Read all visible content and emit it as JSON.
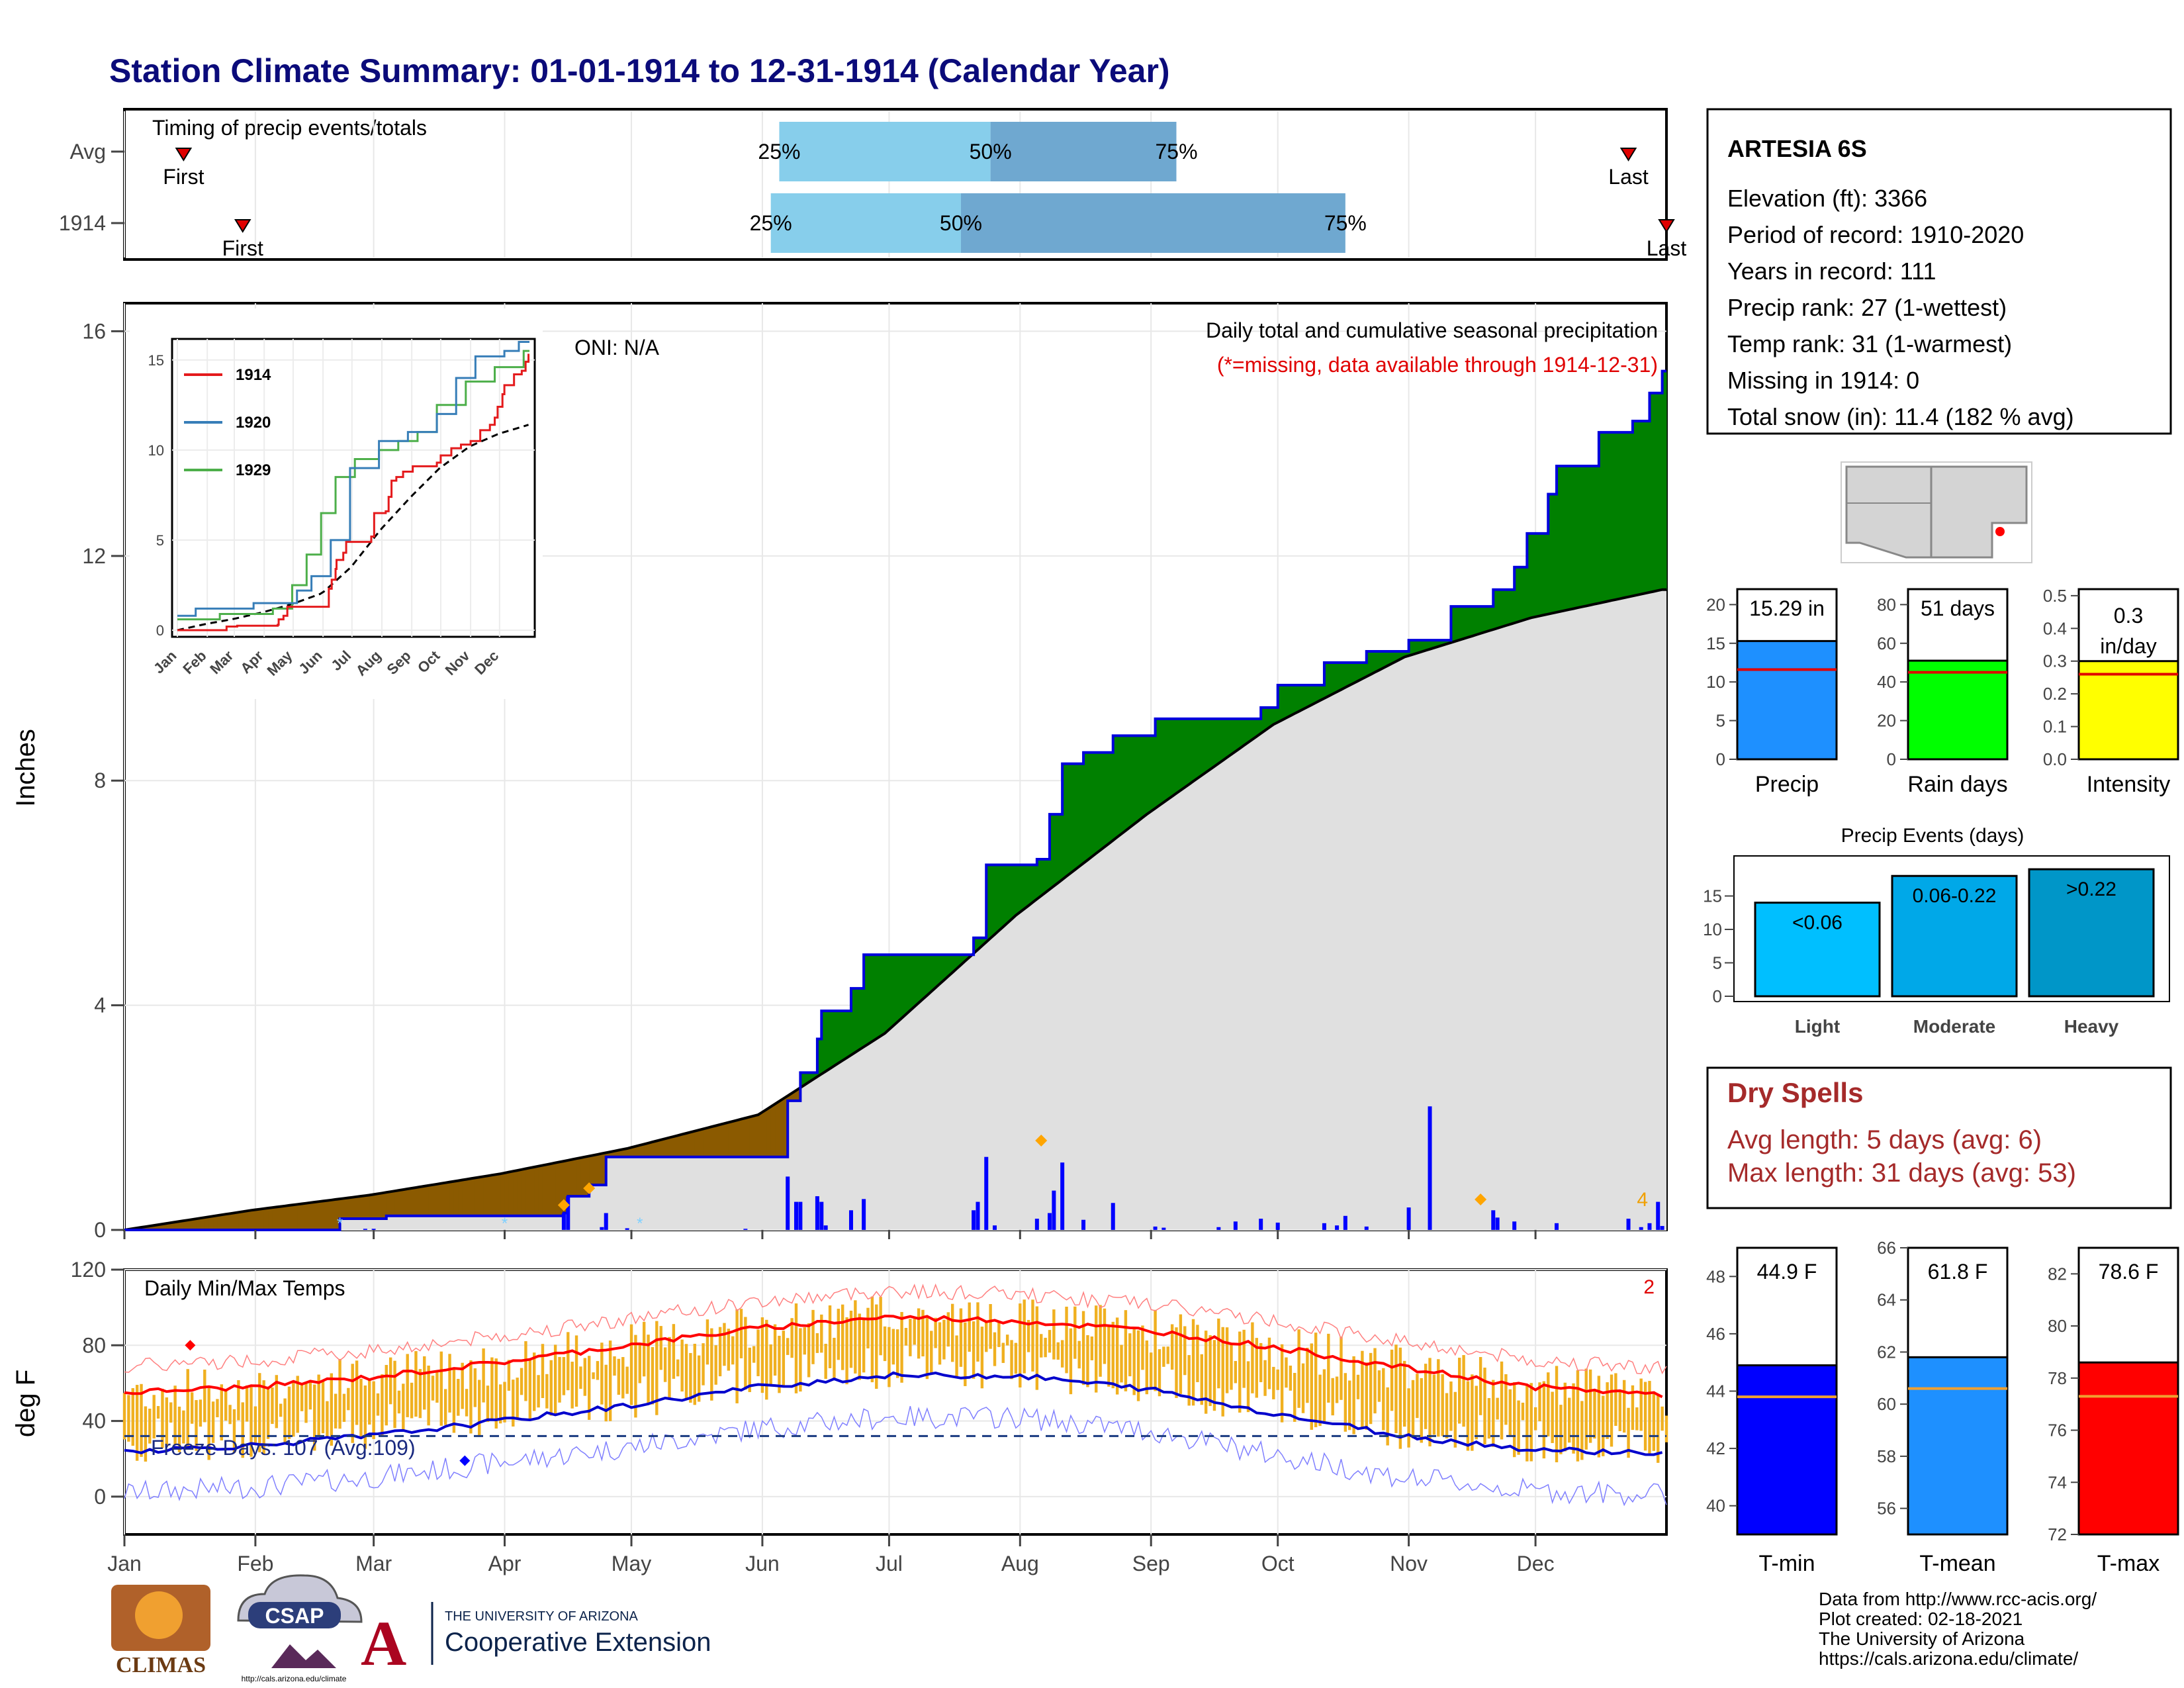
{
  "title": "Station Climate Summary: 01-01-1914 to 12-31-1914 (Calendar Year)",
  "colors": {
    "title": "#0b0b7a",
    "cum_area": "#008000",
    "avg_area_below": "#e0e0e0",
    "deficit_area": "#8b5a00",
    "daily_bar": "#0000ff",
    "temp_band": "#f0b020",
    "tmax_line": "#ff0000",
    "tmin_line": "#0000cc",
    "dry_spells": "#a52a2a"
  },
  "timing": {
    "label": "Timing of precip events/totals",
    "rows": [
      {
        "label": "Avg",
        "first_label": "First",
        "last_label": "Last",
        "first_doy": 15,
        "last_doy": 357,
        "q25_doy": 156,
        "q50_doy": 206,
        "q75_doy": 250,
        "q25_label": "25%",
        "q50_label": "50%",
        "q75_label": "75%"
      },
      {
        "label": "1914",
        "first_label": "First",
        "last_label": "Last",
        "first_doy": 29,
        "last_doy": 366,
        "q25_doy": 154,
        "q50_doy": 199,
        "q75_doy": 290,
        "q25_label": "25%",
        "q50_label": "50%",
        "q75_label": "75%"
      }
    ]
  },
  "precip_panel": {
    "ylabel": "Inches",
    "yticks": [
      "0",
      "4",
      "8",
      "12",
      "16"
    ],
    "oni_label": "ONI: N/A",
    "subtitle": "Daily total and cumulative seasonal precipitation",
    "missing_note": "(*=missing, data available through 1914-12-31)",
    "corner_count": "4"
  },
  "inset": {
    "yticks": [
      "0",
      "5",
      "10",
      "15"
    ],
    "months": [
      "Jan",
      "Feb",
      "Mar",
      "Apr",
      "May",
      "Jun",
      "Jul",
      "Aug",
      "Sep",
      "Oct",
      "Nov",
      "Dec"
    ],
    "legend": [
      "1914",
      "1920",
      "1929"
    ],
    "legend_colors": [
      "#e41a1c",
      "#377eb8",
      "#4daf4a"
    ]
  },
  "temp_panel": {
    "title": "Daily Min/Max Temps",
    "ylabel": "deg F",
    "yticks": [
      "0",
      "40",
      "80",
      "120"
    ],
    "freeze_label": "Freeze Days: 107 (Avg:109)",
    "corner_count": "2",
    "freeze_line_f": 32
  },
  "months_x": [
    "Jan",
    "Feb",
    "Mar",
    "Apr",
    "May",
    "Jun",
    "Jul",
    "Aug",
    "Sep",
    "Oct",
    "Nov",
    "Dec"
  ],
  "station": {
    "name": "ARTESIA 6S",
    "lines": [
      "Elevation (ft): 3366",
      "Period of record: 1910-2020",
      "Years in record: 111",
      "Precip rank: 27 (1-wettest)",
      "Temp rank: 31 (1-warmest)",
      "Missing in 1914: 0",
      "Total snow (in): 11.4 (182 % avg)"
    ]
  },
  "stat_bars": [
    {
      "label": "Precip",
      "value_text": "15.29 in",
      "value": 15.29,
      "avg": 11.6,
      "ymax": 22,
      "yticks": [
        "0",
        "5",
        "10",
        "15",
        "20"
      ],
      "color": "#1e90ff"
    },
    {
      "label": "Rain days",
      "value_text": "51 days",
      "value": 51,
      "avg": 45,
      "ymax": 88,
      "yticks": [
        "0",
        "20",
        "40",
        "60",
        "80"
      ],
      "color": "#00ff00"
    },
    {
      "label": "Intensity",
      "value_text": "0.3 in/day",
      "value": 0.3,
      "avg": 0.26,
      "ymax": 0.52,
      "yticks": [
        "0.0",
        "0.1",
        "0.2",
        "0.3",
        "0.4",
        "0.5"
      ],
      "color": "#ffff00"
    }
  ],
  "events": {
    "title": "Precip Events (days)",
    "yticks": [
      "0",
      "5",
      "10",
      "15"
    ],
    "bars": [
      {
        "label": "Light",
        "range": "<0.06",
        "value": 14,
        "color": "#00bfff"
      },
      {
        "label": "Moderate",
        "range": "0.06-0.22",
        "value": 18,
        "color": "#00a8e8"
      },
      {
        "label": "Heavy",
        "range": ">0.22",
        "value": 19,
        "color": "#0096c8"
      }
    ]
  },
  "dry_spells": {
    "title": "Dry Spells",
    "avg_line": "Avg length: 5 days (avg: 6)",
    "max_line": "Max length: 31 days (avg: 53)"
  },
  "temp_bars": [
    {
      "label": "T-min",
      "value_text": "44.9 F",
      "value": 44.9,
      "avg": 43.8,
      "ymin": 39,
      "ymax": 49,
      "yticks": [
        "40",
        "42",
        "44",
        "46",
        "48"
      ],
      "color": "#0000ff"
    },
    {
      "label": "T-mean",
      "value_text": "61.8 F",
      "value": 61.8,
      "avg": 60.6,
      "ymin": 55,
      "ymax": 66,
      "yticks": [
        "56",
        "58",
        "60",
        "62",
        "64",
        "66"
      ],
      "color": "#1e90ff"
    },
    {
      "label": "T-max",
      "value_text": "78.6 F",
      "value": 78.6,
      "avg": 77.3,
      "ymin": 72,
      "ymax": 83,
      "yticks": [
        "72",
        "74",
        "76",
        "78",
        "80",
        "82"
      ],
      "color": "#ff0000"
    }
  ],
  "credits": [
    "Data from http://www.rcc-acis.org/",
    "Plot created: 02-18-2021",
    "The University of Arizona",
    "https://cals.arizona.edu/climate/"
  ],
  "logos": {
    "climas": "CLIMAS",
    "csap": "CSAP",
    "csap_url": "http://cals.arizona.edu/climate",
    "ua_small": "THE UNIVERSITY OF ARIZONA",
    "ua_big": "Cooperative Extension"
  },
  "chart_data": {
    "type": "area",
    "title": "Daily total and cumulative seasonal precipitation",
    "ylabel": "Inches",
    "ylim": [
      0,
      16.5
    ],
    "cumulative_1914_steps": [
      [
        1,
        0
      ],
      [
        52,
        0.2
      ],
      [
        63,
        0.25
      ],
      [
        105,
        0.3
      ],
      [
        106,
        0.6
      ],
      [
        111,
        0.8
      ],
      [
        115,
        1.3
      ],
      [
        148,
        1.3
      ],
      [
        158,
        2.3
      ],
      [
        161,
        2.8
      ],
      [
        165,
        3.4
      ],
      [
        166,
        3.9
      ],
      [
        173,
        4.3
      ],
      [
        176,
        4.9
      ],
      [
        202,
        5.2
      ],
      [
        205,
        6.5
      ],
      [
        217,
        6.6
      ],
      [
        220,
        7.4
      ],
      [
        223,
        8.3
      ],
      [
        228,
        8.5
      ],
      [
        235,
        8.8
      ],
      [
        245,
        9.1
      ],
      [
        270,
        9.3
      ],
      [
        274,
        9.7
      ],
      [
        285,
        10.1
      ],
      [
        295,
        10.3
      ],
      [
        305,
        10.5
      ],
      [
        315,
        11.1
      ],
      [
        325,
        11.4
      ],
      [
        330,
        11.8
      ],
      [
        333,
        12.4
      ],
      [
        338,
        13.1
      ],
      [
        340,
        13.6
      ],
      [
        350,
        14.2
      ],
      [
        358,
        14.4
      ],
      [
        362,
        14.9
      ],
      [
        365,
        15.29
      ]
    ],
    "average_cumulative": [
      [
        1,
        0
      ],
      [
        31,
        0.35
      ],
      [
        59,
        0.62
      ],
      [
        90,
        1.0
      ],
      [
        120,
        1.45
      ],
      [
        151,
        2.05
      ],
      [
        181,
        3.5
      ],
      [
        212,
        5.6
      ],
      [
        243,
        7.4
      ],
      [
        273,
        9.0
      ],
      [
        304,
        10.2
      ],
      [
        334,
        10.9
      ],
      [
        365,
        11.4
      ]
    ],
    "daily_precip": [
      [
        58,
        0.02
      ],
      [
        60,
        0.02
      ],
      [
        105,
        0.3
      ],
      [
        106,
        0.6
      ],
      [
        114,
        0.05
      ],
      [
        115,
        0.3
      ],
      [
        120,
        0.03
      ],
      [
        148,
        0.02
      ],
      [
        158,
        0.95
      ],
      [
        160,
        0.5
      ],
      [
        161,
        0.5
      ],
      [
        165,
        0.6
      ],
      [
        166,
        0.5
      ],
      [
        167,
        0.08
      ],
      [
        173,
        0.35
      ],
      [
        176,
        0.55
      ],
      [
        202,
        0.35
      ],
      [
        203,
        0.5
      ],
      [
        205,
        1.3
      ],
      [
        207,
        0.08
      ],
      [
        217,
        0.2
      ],
      [
        220,
        0.3
      ],
      [
        221,
        0.7
      ],
      [
        223,
        1.2
      ],
      [
        228,
        0.18
      ],
      [
        235,
        0.48
      ],
      [
        245,
        0.06
      ],
      [
        247,
        0.04
      ],
      [
        260,
        0.05
      ],
      [
        264,
        0.15
      ],
      [
        270,
        0.2
      ],
      [
        274,
        0.13
      ],
      [
        285,
        0.12
      ],
      [
        288,
        0.08
      ],
      [
        290,
        0.25
      ],
      [
        295,
        0.06
      ],
      [
        305,
        0.4
      ],
      [
        310,
        2.2
      ],
      [
        325,
        0.35
      ],
      [
        326,
        0.22
      ],
      [
        330,
        0.15
      ],
      [
        340,
        0.12
      ],
      [
        357,
        0.2
      ],
      [
        360,
        0.05
      ],
      [
        362,
        0.12
      ],
      [
        364,
        0.5
      ],
      [
        365,
        0.07
      ]
    ],
    "tmax_avg": [
      [
        1,
        55
      ],
      [
        31,
        58
      ],
      [
        59,
        63
      ],
      [
        90,
        71
      ],
      [
        120,
        80
      ],
      [
        151,
        89
      ],
      [
        181,
        95
      ],
      [
        212,
        93
      ],
      [
        243,
        88
      ],
      [
        273,
        79
      ],
      [
        304,
        68
      ],
      [
        334,
        58
      ],
      [
        365,
        54
      ]
    ],
    "tmin_avg": [
      [
        1,
        24
      ],
      [
        31,
        27
      ],
      [
        59,
        32
      ],
      [
        90,
        40
      ],
      [
        120,
        48
      ],
      [
        151,
        58
      ],
      [
        181,
        64
      ],
      [
        212,
        64
      ],
      [
        243,
        57
      ],
      [
        273,
        44
      ],
      [
        304,
        32
      ],
      [
        334,
        25
      ],
      [
        365,
        23
      ]
    ],
    "temp_ylim": [
      -20,
      120
    ],
    "x_domain_days": [
      1,
      366
    ]
  }
}
